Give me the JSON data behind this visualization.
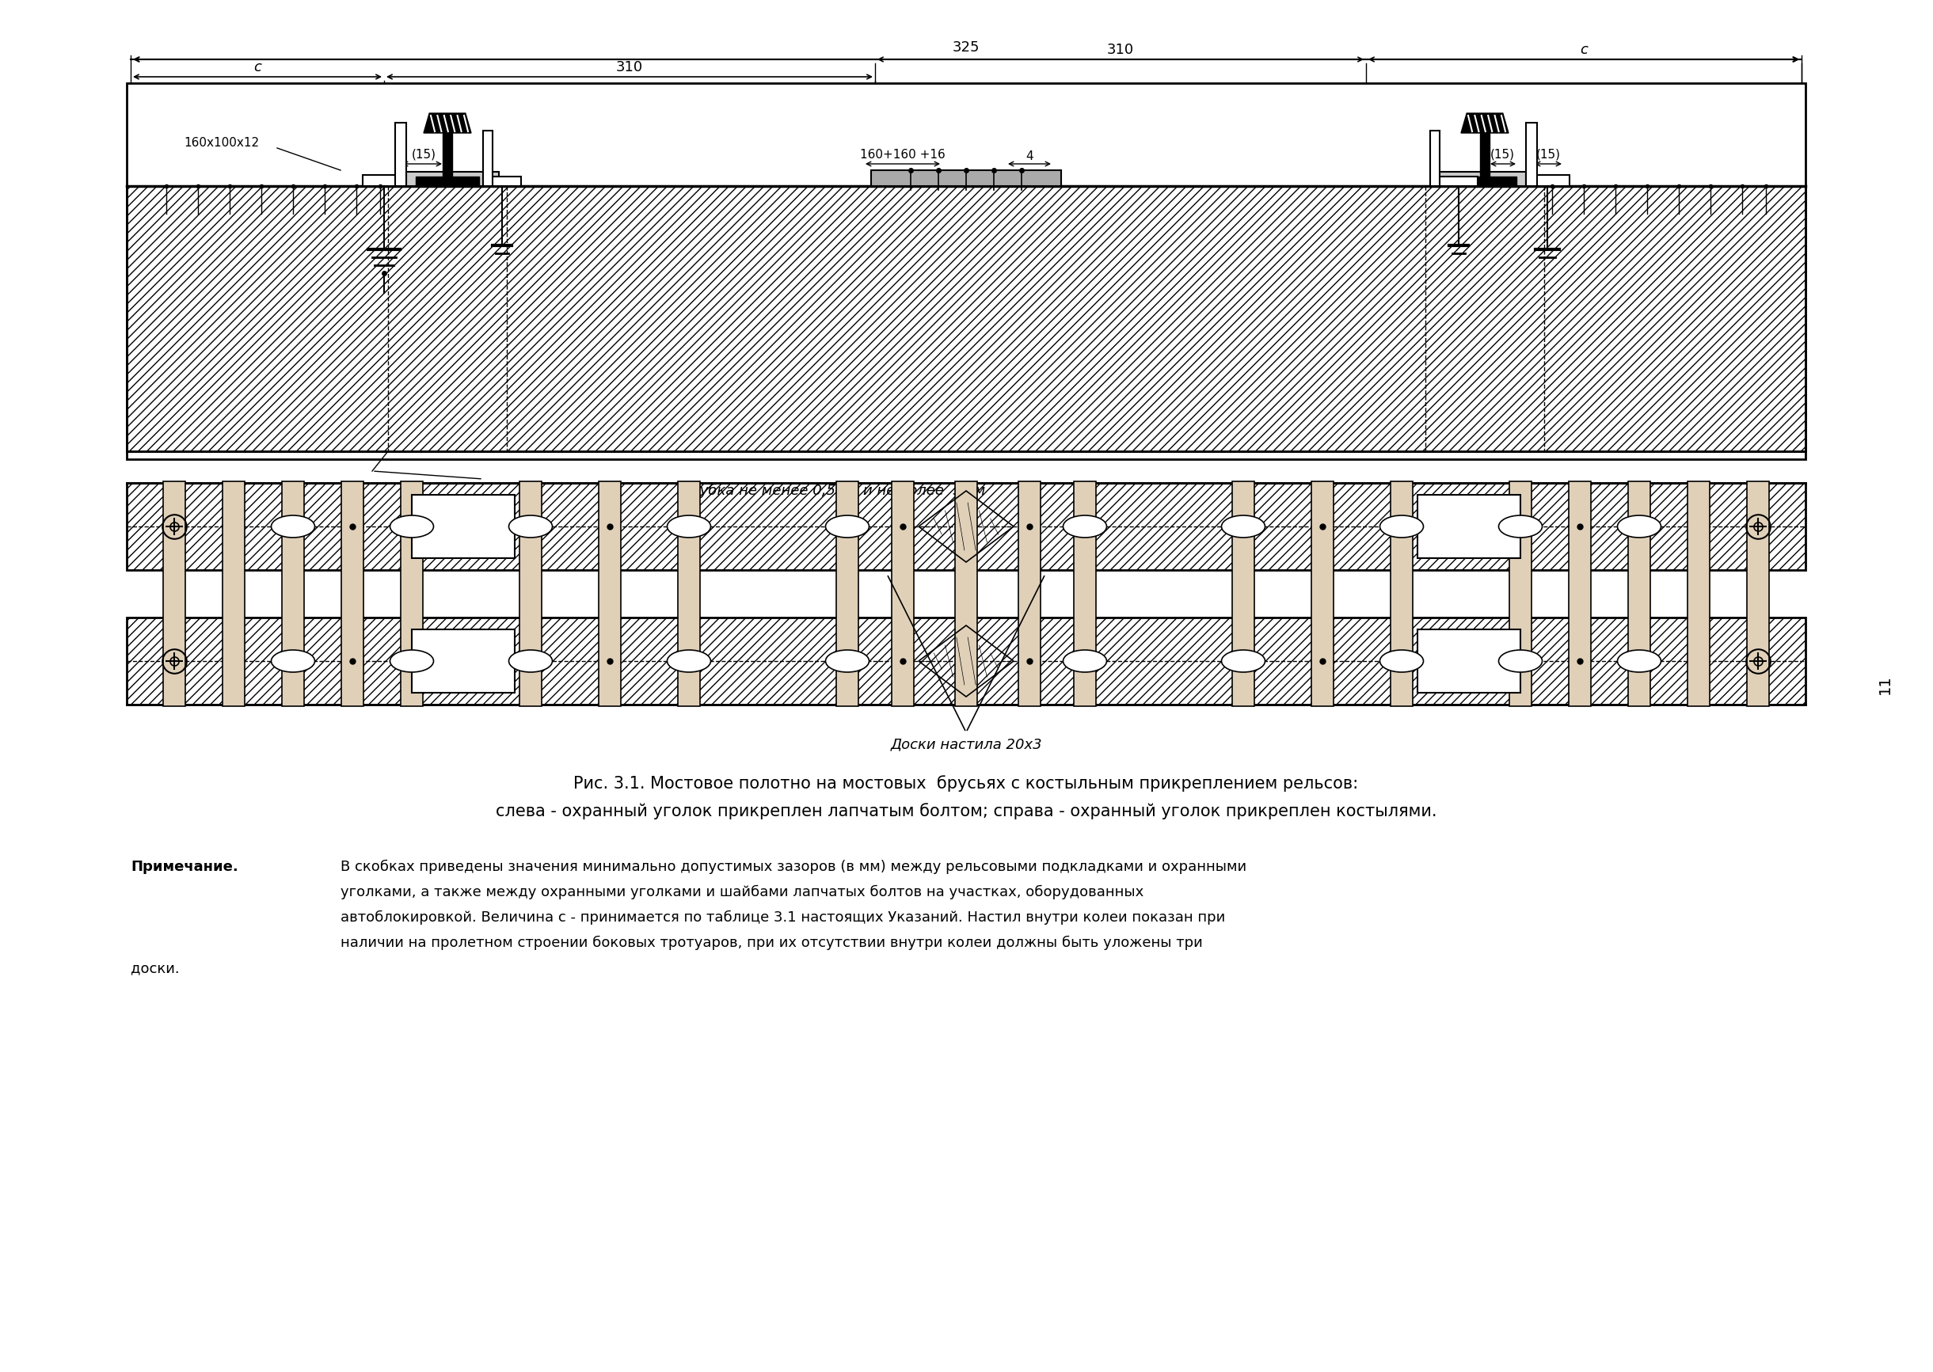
{
  "bg_color": "#ffffff",
  "page_number": "11",
  "title_line1": "Рис. 3.1. Мостовое полотно на мостовых  брусьях с костыльным прикреплением рельсов:",
  "title_line2": "слева - охранный уголок прикреплен лапчатым болтом; справа - охранный уголок прикреплен костылями.",
  "label_325": "325",
  "label_310_left": "310",
  "label_310_right": "310",
  "label_c_left": "c",
  "label_c_right2": "c",
  "label_160x100x12": "160х100х12",
  "label_15_left": "(15)",
  "label_160x160x16": "160+160 +16",
  "label_4": "4",
  "label_15_right1": "(15)",
  "label_15_right2": "(15)",
  "label_vrubka": "Врубка не менее 0,5 см и не более  3 см",
  "label_doski": "Доски настила 20х3",
  "note_label": "Примечание.",
  "note_text1": "В скобках приведены значения минимально допустимых зазоров (в мм) между рельсовыми подкладками и охранными",
  "note_text2": "уголками, а также между охранными уголками и шайбами лапчатых болтов на участках, оборудованных",
  "note_text3": "автоблокировкой. Величина с - принимается по таблице 3.1 настоящих Указаний. Настил внутри колеи показан при",
  "note_text4": "наличии на пролетном строении боковых тротуаров, при их отсутствии внутри колеи должны быть уложены три",
  "note_text5": "доски."
}
